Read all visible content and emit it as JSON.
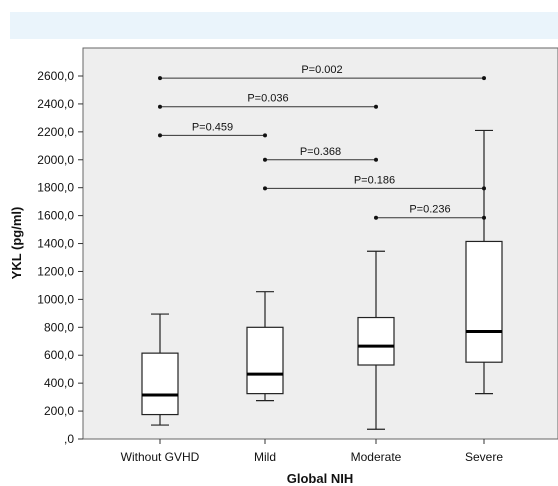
{
  "chart_data": {
    "type": "box",
    "xlabel": "Global NIH",
    "ylabel": "YKL (pg/ml)",
    "ylim": [
      0,
      2800
    ],
    "yticks": [
      {
        "value": 0,
        "label": ",0"
      },
      {
        "value": 200,
        "label": "200,0"
      },
      {
        "value": 400,
        "label": "400,0"
      },
      {
        "value": 600,
        "label": "600,0"
      },
      {
        "value": 800,
        "label": "800,0"
      },
      {
        "value": 1000,
        "label": "1000,0"
      },
      {
        "value": 1200,
        "label": "1200,0"
      },
      {
        "value": 1400,
        "label": "1400,0"
      },
      {
        "value": 1600,
        "label": "1600,0"
      },
      {
        "value": 1800,
        "label": "1800,0"
      },
      {
        "value": 2000,
        "label": "2000,0"
      },
      {
        "value": 2200,
        "label": "2200,0"
      },
      {
        "value": 2400,
        "label": "2400,0"
      },
      {
        "value": 2600,
        "label": "2600,0"
      }
    ],
    "categories": [
      "Without GVHD",
      "Mild",
      "Moderate",
      "Severe"
    ],
    "boxes": [
      {
        "category": "Without GVHD",
        "min": 100,
        "q1": 175,
        "median": 315,
        "q3": 615,
        "max": 895
      },
      {
        "category": "Mild",
        "min": 275,
        "q1": 325,
        "median": 465,
        "q3": 800,
        "max": 1055
      },
      {
        "category": "Moderate",
        "min": 70,
        "q1": 530,
        "median": 665,
        "q3": 870,
        "max": 1345
      },
      {
        "category": "Severe",
        "min": 325,
        "q1": 550,
        "median": 770,
        "q3": 1415,
        "max": 2210
      }
    ],
    "comparisons": [
      {
        "from": "Without GVHD",
        "to": "Severe",
        "y": 2585,
        "label": "P=0.002"
      },
      {
        "from": "Without GVHD",
        "to": "Moderate",
        "y": 2380,
        "label": "P=0.036"
      },
      {
        "from": "Without GVHD",
        "to": "Mild",
        "y": 2175,
        "label": "P=0.459"
      },
      {
        "from": "Mild",
        "to": "Moderate",
        "y": 2000,
        "label": "P=0.368"
      },
      {
        "from": "Mild",
        "to": "Severe",
        "y": 1795,
        "label": "P=0.186"
      },
      {
        "from": "Moderate",
        "to": "Severe",
        "y": 1585,
        "label": "P=0.236"
      }
    ],
    "grid": false,
    "background": "#eeeeee"
  }
}
